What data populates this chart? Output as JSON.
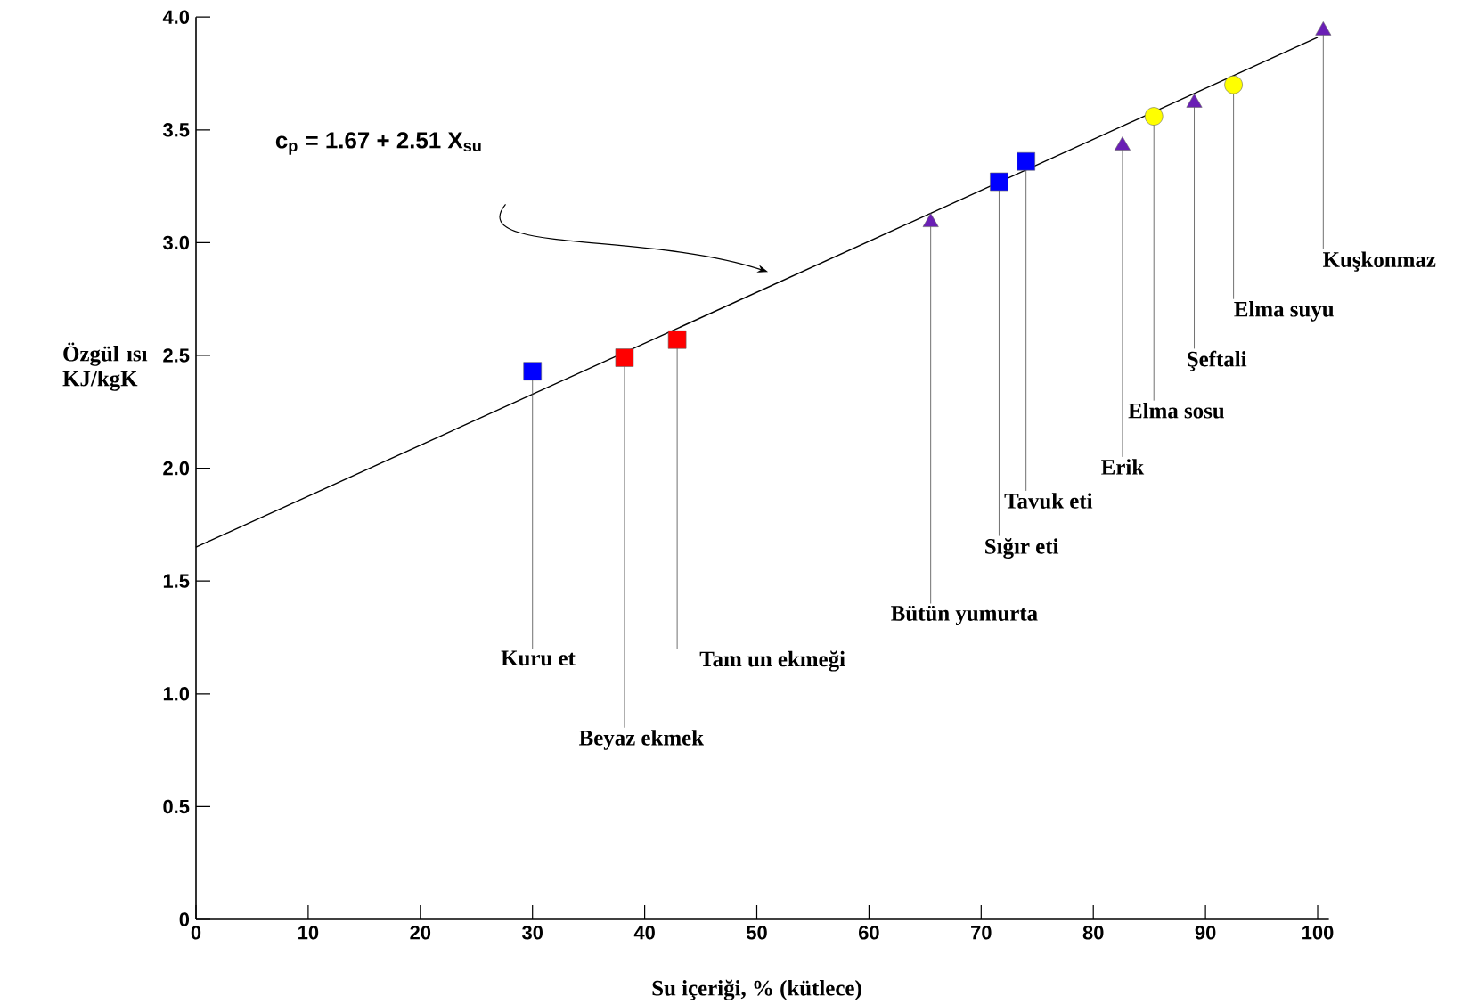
{
  "chart_data": {
    "type": "scatter",
    "xlabel": "Su içeriği, % (kütlece)",
    "ylabel": "Özgül ısı KJ/kgK",
    "xlim": [
      0,
      101
    ],
    "ylim": [
      0,
      4
    ],
    "xticks": [
      0,
      10,
      20,
      30,
      40,
      50,
      60,
      70,
      80,
      90,
      100
    ],
    "yticks": [
      0,
      0.5,
      {
        "value": 1,
        "label": "1.0"
      },
      1.5,
      {
        "value": 2,
        "label": "2.0"
      },
      2.5,
      {
        "value": 3,
        "label": "3.0"
      },
      3.5,
      {
        "value": 4,
        "label": "4.0"
      }
    ],
    "series": [
      {
        "type": "line",
        "color": "#000000",
        "marker": "none",
        "x": [
          0,
          100
        ],
        "values": [
          1.65,
          3.91
        ]
      },
      {
        "color": "#0000ff",
        "marker": "square",
        "x": [
          30,
          71.6,
          74
        ],
        "values": [
          2.43,
          3.27,
          3.36
        ]
      },
      {
        "color": "#ff0000",
        "marker": "square",
        "x": [
          38.2,
          42.9
        ],
        "values": [
          2.49,
          2.57
        ]
      },
      {
        "color": "#6a1fb5",
        "marker": "triangle",
        "x": [
          65.5,
          82.6,
          89,
          100.5
        ],
        "values": [
          3.09,
          3.43,
          3.62,
          3.94
        ]
      },
      {
        "color": "#ffff00",
        "marker": "circle",
        "x": [
          85.4,
          92.5
        ],
        "values": [
          3.56,
          3.7
        ]
      }
    ],
    "annotations": [
      "c$_{p}$ = 1.67 + 2.51 X$_{su}$",
      {
        "text": "Kuru et",
        "x": 30,
        "y": 2.43
      },
      {
        "text": "Beyaz ekmek",
        "x": 38.2,
        "y": 2.49
      },
      {
        "text": "Tam un ekmeği",
        "x": 42.9,
        "y": 2.57
      },
      {
        "text": "Bütün yumurta",
        "x": 65.5,
        "y": 3.09
      },
      {
        "text": "Sığır eti",
        "x": 71.6,
        "y": 3.27
      },
      {
        "text": "Tavuk eti",
        "x": 74,
        "y": 3.36
      },
      {
        "text": "Erik",
        "x": 82.6,
        "y": 3.43
      },
      {
        "text": "Elma sosu",
        "x": 85.4,
        "y": 3.56
      },
      {
        "text": "Şeftali",
        "x": 89,
        "y": 3.62
      },
      {
        "text": "Elma suyu",
        "x": 92.5,
        "y": 3.7
      },
      {
        "text": "Kuşkonmaz",
        "x": 100.5,
        "y": 3.94
      }
    ]
  }
}
